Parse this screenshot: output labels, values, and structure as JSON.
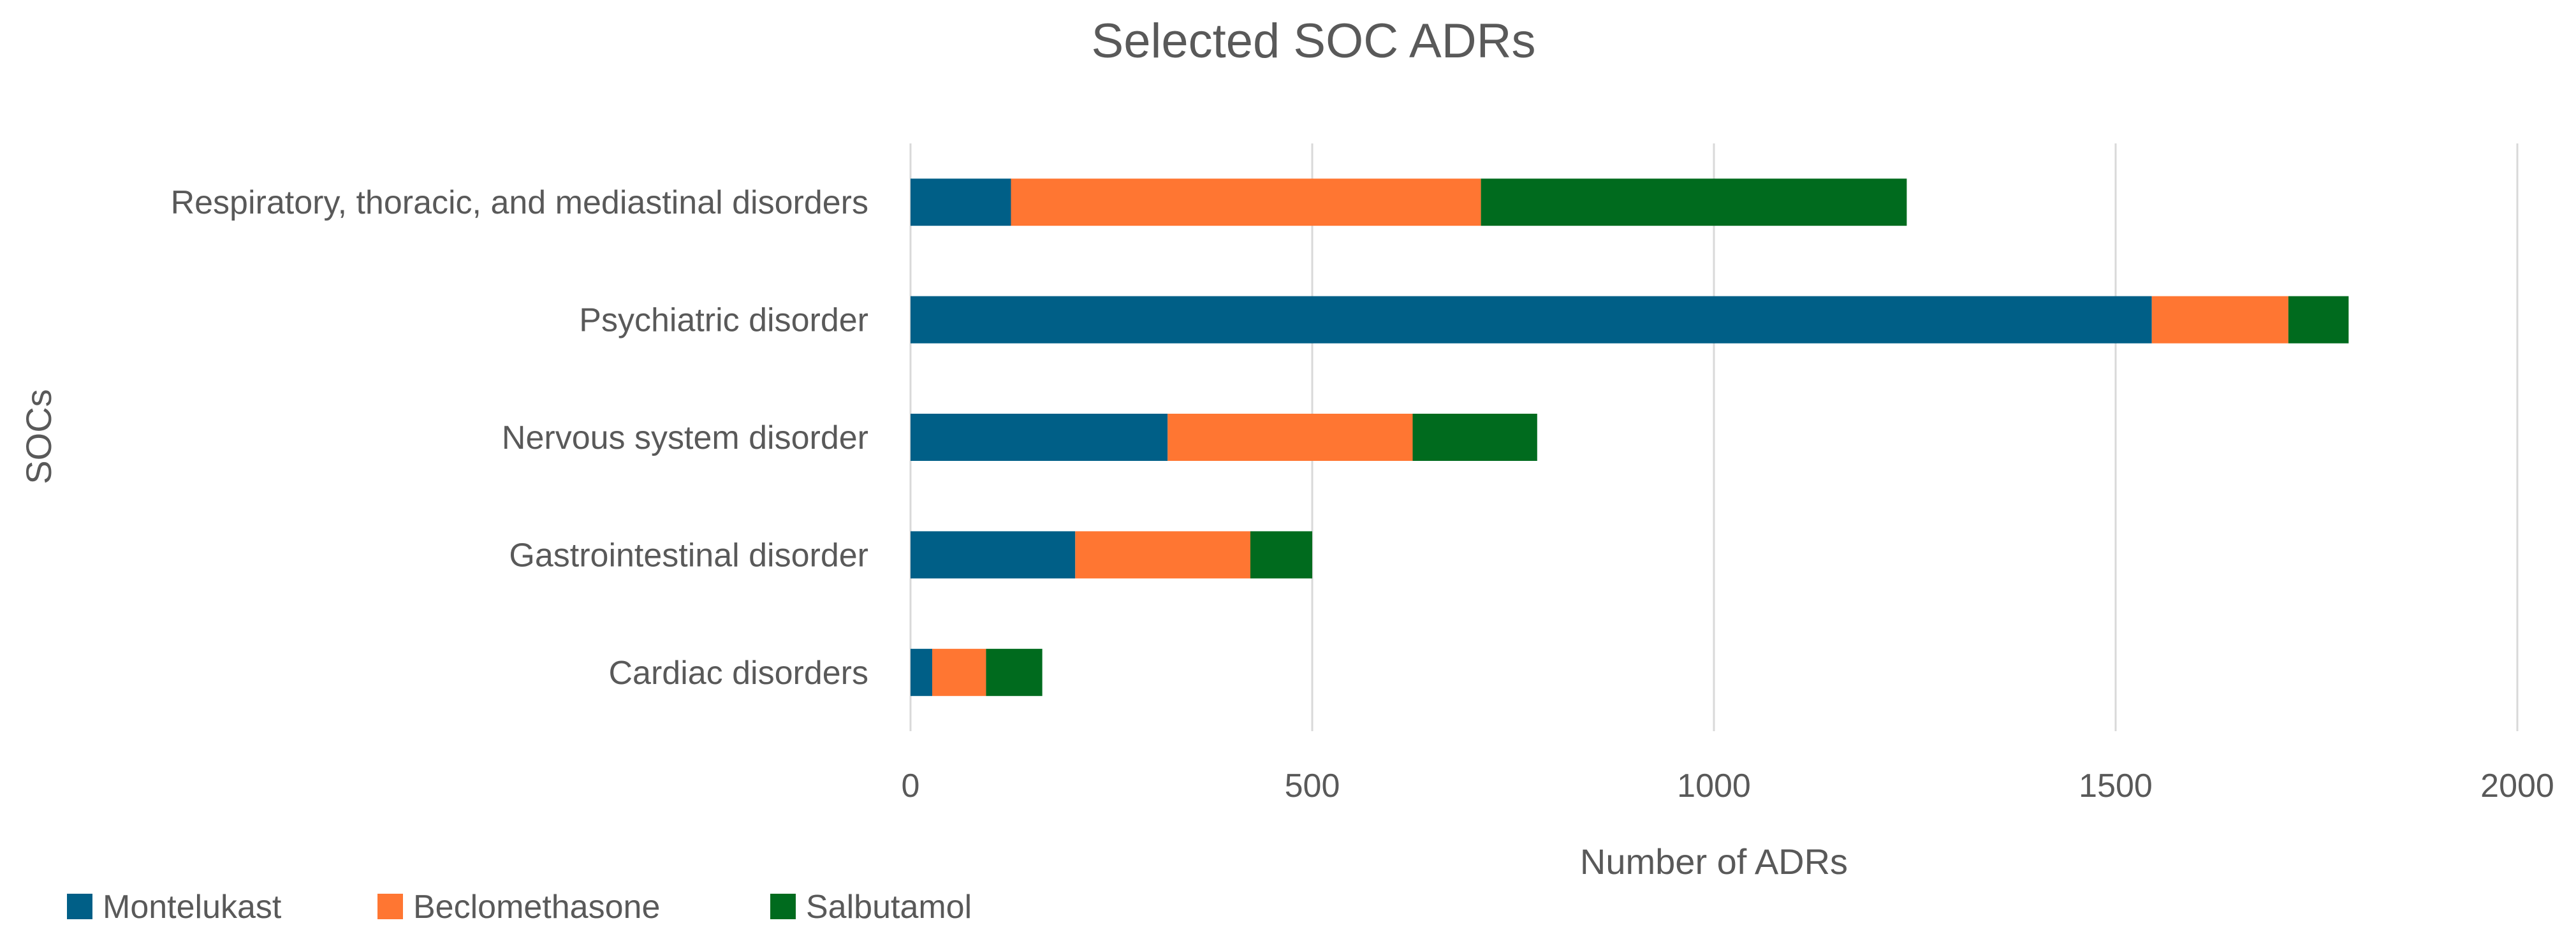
{
  "chart_data": {
    "type": "bar",
    "orientation": "horizontal",
    "stacked": true,
    "title": "Selected SOC ADRs",
    "xlabel": "Number of ADRs",
    "ylabel": "SOCs",
    "categories": [
      "Respiratory, thoracic, and mediastinal disorders",
      "Psychiatric disorder",
      "Nervous system disorder",
      "Gastrointestinal disorder",
      "Cardiac disorders"
    ],
    "series": [
      {
        "name": "Montelukast",
        "color": "#005f87",
        "values": [
          125,
          1545,
          320,
          205,
          27
        ]
      },
      {
        "name": "Beclomethasone",
        "color": "#ff7632",
        "values": [
          585,
          170,
          305,
          218,
          67
        ]
      },
      {
        "name": "Salbutamol",
        "color": "#006b1e",
        "values": [
          530,
          75,
          155,
          77,
          70
        ]
      }
    ],
    "xlim": [
      0,
      2000
    ],
    "xticks": [
      0,
      500,
      1000,
      1500,
      2000
    ],
    "grid": true,
    "legend_position": "bottom-left"
  }
}
